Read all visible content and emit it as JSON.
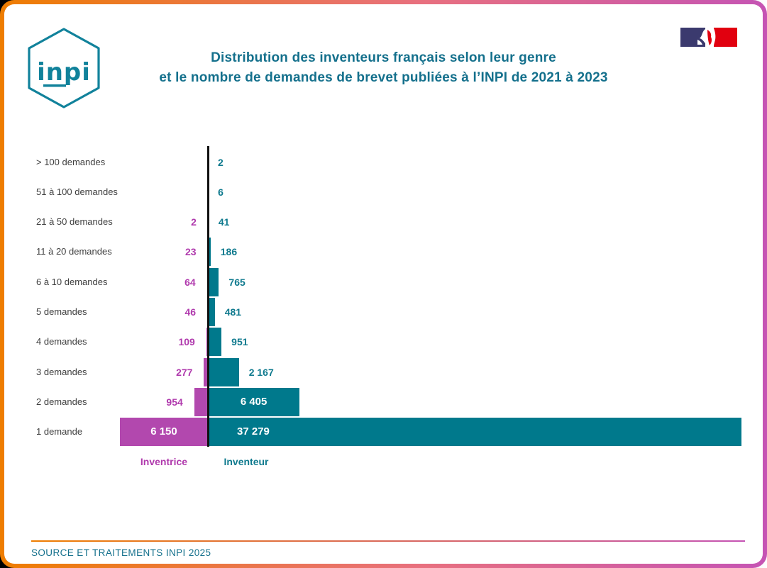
{
  "frame": {
    "border_gradient_left": "#ee7d00",
    "border_gradient_right": "#c554b4",
    "background": "#ffffff"
  },
  "header": {
    "logo_text": "inpi",
    "title_line1": "Distribution des inventeurs français selon leur genre",
    "title_line2": "et le nombre de demandes de brevet publiées à l’INPI de 2021 à 2023",
    "title_color": "#14708c",
    "flag_icon": "french-republic-marianne-flag"
  },
  "chart_data": {
    "type": "bar",
    "orientation": "horizontal-diverging",
    "title": "Distribution des inventeurs français selon leur genre et le nombre de demandes de brevet publiées à l’INPI de 2021 à 2023",
    "categories": [
      "> 100 demandes",
      "51 à 100 demandes",
      "21 à 50 demandes",
      "11 à 20 demandes",
      "6 à 10 demandes",
      "5 demandes",
      "4 demandes",
      "3 demandes",
      "2 demandes",
      "1 demande"
    ],
    "series": [
      {
        "name": "Inventrice",
        "side": "left",
        "color": "#b248ae",
        "label_color": "#b03aad",
        "values": [
          null,
          null,
          2,
          23,
          64,
          46,
          109,
          277,
          954,
          6150
        ],
        "labels": [
          "",
          "",
          "2",
          "23",
          "64",
          "46",
          "109",
          "277",
          "954",
          "6 150"
        ]
      },
      {
        "name": "Inventeur",
        "side": "right",
        "color": "#00798c",
        "label_color": "#0f7a8e",
        "values": [
          2,
          6,
          41,
          186,
          765,
          481,
          951,
          2167,
          6405,
          37279
        ],
        "labels": [
          "2",
          "6",
          "41",
          "186",
          "765",
          "481",
          "951",
          "2 167",
          "6 405",
          "37 279"
        ]
      }
    ],
    "axis_max": 37279,
    "grid": false,
    "legend_position": "bottom",
    "xlabel": "",
    "ylabel": ""
  },
  "footer": {
    "source": "SOURCE ET TRAITEMENTS INPI 2025"
  }
}
